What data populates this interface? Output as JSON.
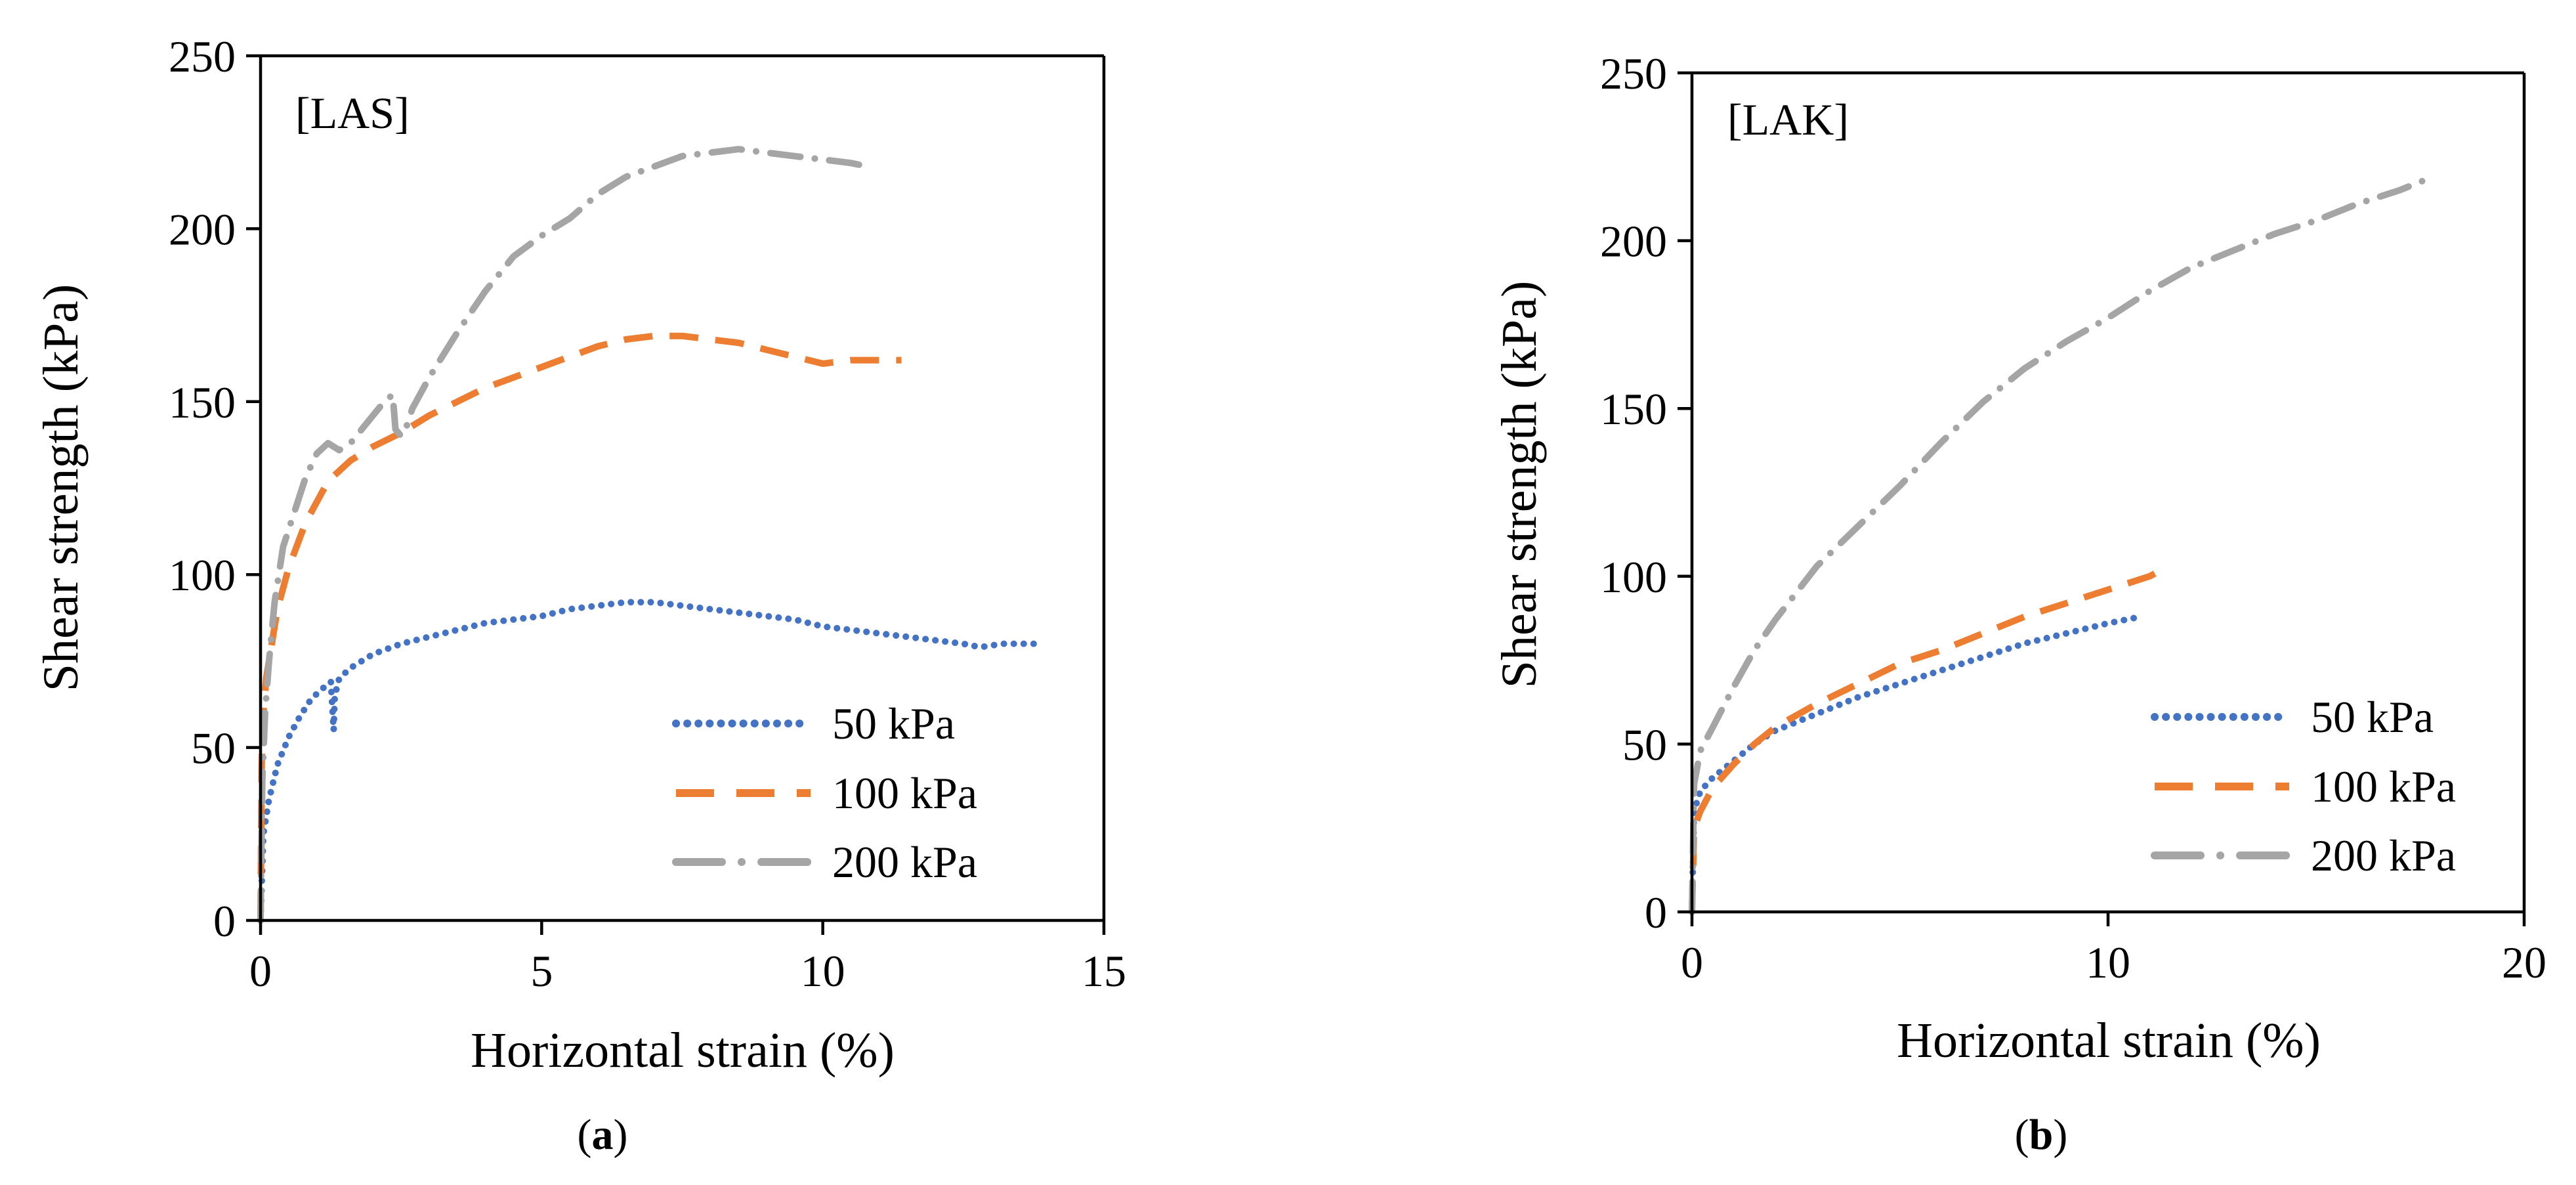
{
  "colors": {
    "s50": "#4472C4",
    "s100": "#ED7D31",
    "s200": "#A5A5A5",
    "axis": "#000000"
  },
  "chart_data": [
    {
      "type": "line",
      "panel": "a",
      "caption_letter": "a",
      "annotation": "[LAS]",
      "xlabel": "Horizontal strain (%)",
      "ylabel": "Shear strength (kPa)",
      "xlim": [
        0,
        15
      ],
      "ylim": [
        0,
        250
      ],
      "xticks": [
        0,
        5,
        10,
        15
      ],
      "yticks": [
        0,
        50,
        100,
        150,
        200,
        250
      ],
      "grid": false,
      "legend_position": "bottom-right",
      "series": [
        {
          "name": "50 kPa",
          "style": "dotted",
          "color_key": "s50",
          "x": [
            0,
            0.05,
            0.15,
            0.3,
            0.5,
            0.7,
            0.9,
            1.1,
            1.25,
            1.3,
            1.32,
            1.4,
            1.6,
            2.0,
            2.5,
            3.0,
            3.5,
            4.0,
            4.5,
            5.0,
            5.5,
            6.0,
            6.5,
            7.0,
            7.5,
            8.0,
            8.5,
            9.0,
            9.5,
            10.0,
            10.5,
            11.0,
            11.5,
            12.0,
            12.5,
            12.8,
            13.2,
            13.5,
            13.8
          ],
          "y": [
            0,
            25,
            35,
            45,
            53,
            59,
            64,
            67,
            69,
            55,
            65,
            70,
            73,
            77,
            80,
            82,
            84,
            86,
            87,
            88,
            90,
            91,
            92,
            92,
            91,
            90,
            89,
            88,
            87,
            85,
            84,
            83,
            82,
            81,
            80,
            79,
            80,
            80,
            80
          ]
        },
        {
          "name": "100 kPa",
          "style": "dashed",
          "color_key": "s100",
          "x": [
            0,
            0.02,
            0.05,
            0.1,
            0.2,
            0.3,
            0.5,
            0.8,
            1.2,
            1.6,
            2.0,
            2.5,
            3.0,
            3.5,
            4.0,
            4.5,
            5.0,
            5.5,
            6.0,
            6.5,
            7.0,
            7.5,
            8.0,
            8.5,
            9.0,
            9.5,
            10.0,
            10.5,
            11.0,
            11.4
          ],
          "y": [
            0,
            45,
            60,
            70,
            80,
            90,
            102,
            115,
            127,
            133,
            137,
            141,
            146,
            150,
            154,
            157,
            160,
            163,
            166,
            168,
            169,
            169,
            168,
            167,
            165,
            163,
            161,
            162,
            162,
            162
          ]
        },
        {
          "name": "200 kPa",
          "style": "dashdot",
          "color_key": "s200",
          "x": [
            0,
            0.03,
            0.08,
            0.15,
            0.25,
            0.4,
            0.6,
            0.8,
            1.0,
            1.2,
            1.4,
            1.6,
            1.8,
            2.0,
            2.2,
            2.35,
            2.4,
            2.5,
            2.6,
            2.7,
            3.0,
            3.5,
            4.0,
            4.5,
            5.0,
            5.5,
            6.0,
            6.5,
            7.0,
            7.5,
            8.0,
            8.5,
            9.0,
            9.5,
            10.0,
            10.5,
            10.8
          ],
          "y": [
            0,
            40,
            60,
            75,
            92,
            108,
            118,
            128,
            135,
            138,
            136,
            138,
            142,
            146,
            150,
            152,
            142,
            140,
            143,
            148,
            157,
            170,
            182,
            192,
            198,
            203,
            210,
            215,
            218,
            221,
            222,
            223,
            222,
            221,
            220,
            219,
            218
          ]
        }
      ]
    },
    {
      "type": "line",
      "panel": "b",
      "caption_letter": "b",
      "annotation": "[LAK]",
      "xlabel": "Horizontal strain (%)",
      "ylabel": "Shear strength (kPa)",
      "xlim": [
        0,
        20
      ],
      "ylim": [
        0,
        250
      ],
      "xticks": [
        0,
        10,
        20
      ],
      "yticks": [
        0,
        50,
        100,
        150,
        200,
        250
      ],
      "grid": false,
      "legend_position": "bottom-right",
      "series": [
        {
          "name": "50 kPa",
          "style": "dotted",
          "color_key": "s50",
          "x": [
            0,
            0.05,
            0.2,
            0.5,
            1.0,
            1.5,
            2.0,
            3.0,
            4.0,
            5.0,
            6.0,
            7.0,
            8.0,
            9.0,
            10.0,
            10.8
          ],
          "y": [
            0,
            30,
            36,
            40,
            45,
            50,
            54,
            59,
            64,
            68,
            72,
            76,
            80,
            83,
            86,
            88
          ]
        },
        {
          "name": "100 kPa",
          "style": "dashed",
          "color_key": "s100",
          "x": [
            0,
            0.05,
            0.2,
            0.5,
            1.0,
            1.5,
            2.0,
            3.0,
            4.0,
            5.0,
            6.0,
            7.0,
            8.0,
            9.0,
            10.0,
            11.0,
            11.3
          ],
          "y": [
            0,
            25,
            30,
            37,
            44,
            50,
            55,
            62,
            68,
            74,
            78,
            83,
            88,
            92,
            96,
            100,
            102
          ]
        },
        {
          "name": "200 kPa",
          "style": "dashdot",
          "color_key": "s200",
          "x": [
            0,
            0.05,
            0.2,
            0.5,
            1.0,
            1.5,
            2.0,
            3.0,
            4.0,
            5.0,
            6.0,
            7.0,
            8.0,
            9.0,
            10.0,
            11.0,
            12.0,
            13.0,
            14.0,
            15.0,
            16.0,
            17.0,
            17.8
          ],
          "y": [
            0,
            38,
            48,
            55,
            67,
            78,
            87,
            103,
            115,
            127,
            140,
            152,
            162,
            170,
            177,
            185,
            192,
            197,
            202,
            206,
            211,
            215,
            219
          ]
        }
      ]
    }
  ]
}
